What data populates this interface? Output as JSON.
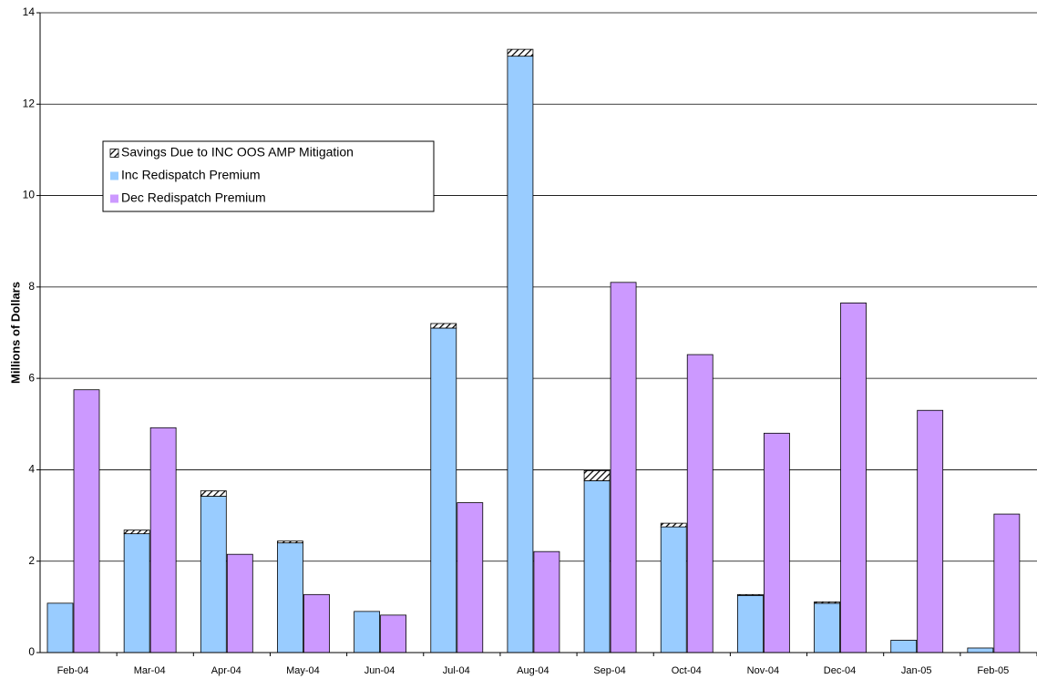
{
  "chart_data": {
    "type": "bar",
    "y_label": "Millions of Dollars",
    "categories": [
      "Feb-04",
      "Mar-04",
      "Apr-04",
      "May-04",
      "Jun-04",
      "Jul-04",
      "Aug-04",
      "Sep-04",
      "Oct-04",
      "Nov-04",
      "Dec-04",
      "Jan-05",
      "Feb-05"
    ],
    "series": [
      {
        "name": "Savings Due to INC OOS AMP Mitigation",
        "color": "#000000",
        "values": [
          0,
          0.08,
          0.12,
          0.04,
          0,
          0.1,
          0.15,
          0.22,
          0.08,
          0.02,
          0.03,
          0,
          0
        ]
      },
      {
        "name": "Inc Redispatch Premium",
        "color": "#99ccff",
        "values": [
          1.08,
          2.6,
          3.42,
          2.4,
          0.9,
          7.1,
          13.05,
          3.76,
          2.75,
          1.25,
          1.08,
          0.27,
          0.1
        ]
      },
      {
        "name": "Dec Redispatch Premium",
        "color": "#cc99ff",
        "values": [
          5.75,
          4.92,
          2.15,
          1.27,
          0.82,
          3.28,
          2.21,
          8.1,
          6.52,
          4.8,
          7.65,
          5.3,
          3.03
        ]
      }
    ],
    "ylim": [
      0,
      14
    ],
    "yticks": [
      0,
      2,
      4,
      6,
      8,
      10,
      12,
      14
    ],
    "grid": true
  }
}
